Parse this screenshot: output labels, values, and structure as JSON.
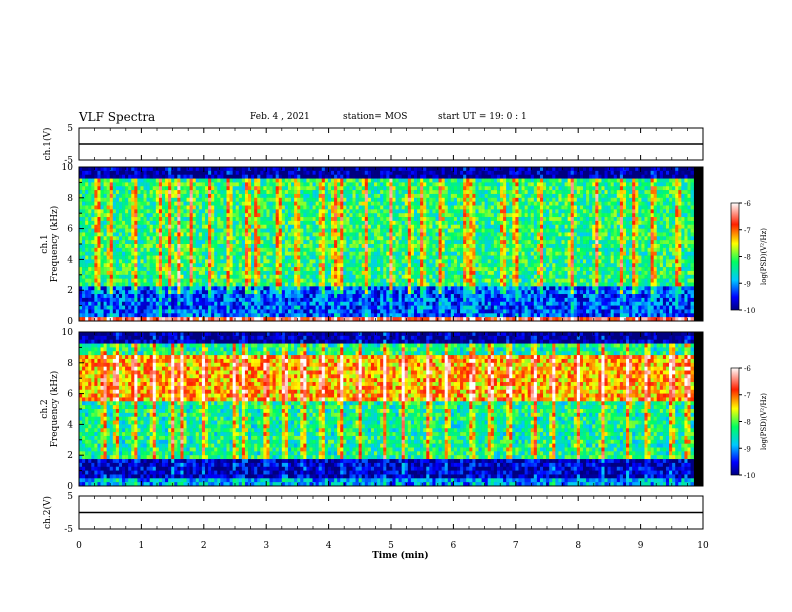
{
  "header": {
    "title": "VLF Spectra",
    "date": "Feb. 4 , 2021",
    "station": "station= MOS",
    "start": "start UT = 19: 0 : 1"
  },
  "chart_data": [
    {
      "type": "line",
      "name": "ch.1 waveform",
      "ylabel": "ch.1(V)",
      "ylim": [
        -5,
        5
      ],
      "yticks": [
        "5",
        "-5"
      ],
      "x": [
        0,
        10
      ],
      "values": [
        0,
        0
      ]
    },
    {
      "type": "heatmap",
      "name": "ch.1 spectrogram",
      "ylabel_line1": "ch.1",
      "ylabel_line2": "Frequency (kHz)",
      "xlim": [
        0,
        9.85
      ],
      "ylim": [
        0,
        10
      ],
      "yticks": [
        "0",
        "2",
        "4",
        "6",
        "8",
        "10"
      ],
      "colorbar": {
        "label": "log(PSD)(V²/Hz)",
        "ticks": [
          "-6",
          "-7",
          "-8",
          "-9",
          "-10"
        ],
        "range": [
          -10,
          -6
        ]
      },
      "base_level": -8.3,
      "bands": [
        {
          "fmin": 0.0,
          "fmax": 0.3,
          "level": -6.6
        },
        {
          "fmin": 0.3,
          "fmax": 2.2,
          "level": -9.3
        },
        {
          "fmin": 9.2,
          "fmax": 10.0,
          "level": -10.0
        }
      ],
      "bursts": [
        0.3,
        0.5,
        0.9,
        1.3,
        1.45,
        1.6,
        1.8,
        2.1,
        2.4,
        2.7,
        2.85,
        3.2,
        3.5,
        3.9,
        4.1,
        4.2,
        4.6,
        5.0,
        5.3,
        5.5,
        5.8,
        6.2,
        6.3,
        6.8,
        7.0,
        7.4,
        7.9,
        8.3,
        8.7,
        8.9,
        9.2,
        9.6
      ]
    },
    {
      "type": "heatmap",
      "name": "ch.2 spectrogram",
      "ylabel_line1": "ch.2",
      "ylabel_line2": "Frequency (kHz)",
      "xlim": [
        0,
        9.85
      ],
      "ylim": [
        0,
        10
      ],
      "yticks": [
        "0",
        "2",
        "4",
        "6",
        "8",
        "10"
      ],
      "colorbar": {
        "label": "log(PSD)(V²/Hz)",
        "ticks": [
          "-6",
          "-7",
          "-8",
          "-9",
          "-10"
        ],
        "range": [
          -10,
          -6
        ]
      },
      "base_level": -8.4,
      "bands": [
        {
          "fmin": 0.0,
          "fmax": 0.5,
          "level": -9.0
        },
        {
          "fmin": 0.5,
          "fmax": 1.8,
          "level": -9.8
        },
        {
          "fmin": 5.5,
          "fmax": 8.5,
          "level": -7.3
        },
        {
          "fmin": 9.2,
          "fmax": 10.0,
          "level": -10.0
        }
      ],
      "bursts": [
        0.4,
        0.6,
        0.9,
        1.2,
        1.5,
        1.65,
        2.0,
        2.5,
        2.65,
        3.0,
        3.3,
        3.6,
        3.9,
        4.2,
        4.5,
        4.9,
        5.2,
        5.6,
        5.9,
        6.3,
        6.6,
        6.9,
        7.3,
        7.6,
        8.0,
        8.4,
        8.8,
        9.1,
        9.5,
        9.75
      ]
    },
    {
      "type": "line",
      "name": "ch.2 waveform",
      "ylabel": "ch.2(V)",
      "ylim": [
        -5,
        5
      ],
      "yticks": [
        "5",
        "-5"
      ],
      "x": [
        0,
        10
      ],
      "values": [
        0,
        0
      ]
    }
  ],
  "xaxis": {
    "label": "Time (min)",
    "ticks": [
      "0",
      "1",
      "2",
      "3",
      "4",
      "5",
      "6",
      "7",
      "8",
      "9",
      "10"
    ],
    "range": [
      0,
      10
    ]
  }
}
